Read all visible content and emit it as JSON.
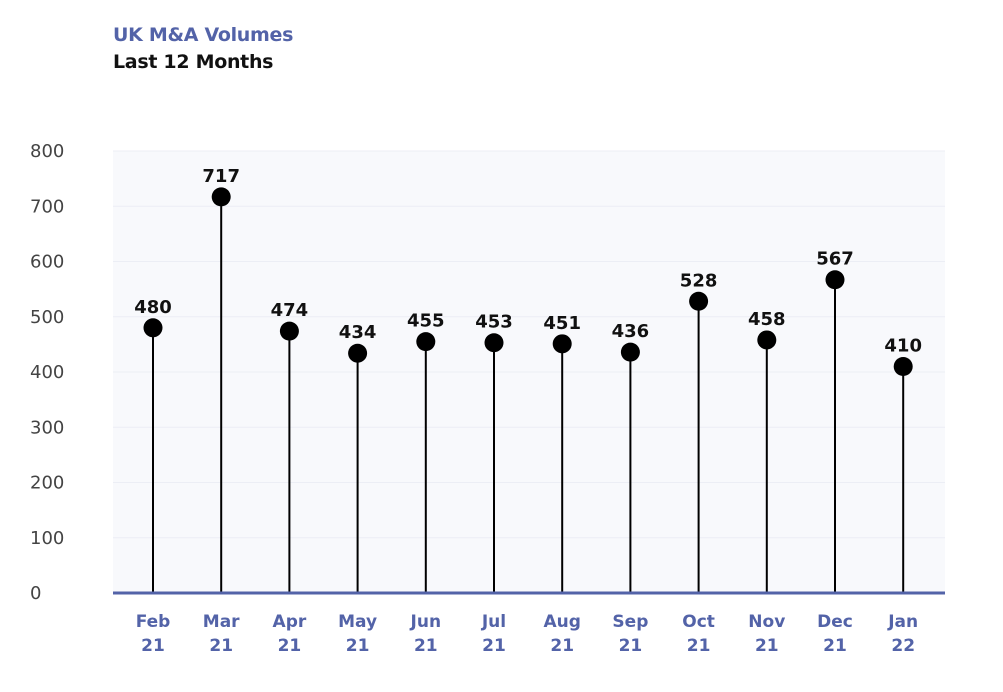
{
  "chart_data": {
    "type": "lollipop",
    "title": "UK M&A Volumes",
    "subtitle": "Last 12 Months",
    "categories": [
      [
        "Feb",
        "21"
      ],
      [
        "Mar",
        "21"
      ],
      [
        "Apr",
        "21"
      ],
      [
        "May",
        "21"
      ],
      [
        "Jun",
        "21"
      ],
      [
        "Jul",
        "21"
      ],
      [
        "Aug",
        "21"
      ],
      [
        "Sep",
        "21"
      ],
      [
        "Oct",
        "21"
      ],
      [
        "Nov",
        "21"
      ],
      [
        "Dec",
        "21"
      ],
      [
        "Jan",
        "22"
      ]
    ],
    "values": [
      480,
      717,
      474,
      434,
      455,
      453,
      451,
      436,
      528,
      458,
      567,
      410
    ],
    "ylim": [
      0,
      800
    ],
    "yticks": [
      "0",
      "100",
      "200",
      "300",
      "400",
      "500",
      "600",
      "700",
      "800"
    ],
    "grid": true,
    "colors": {
      "title": "#5363a8",
      "axis": "#5363a8",
      "marker": "#000000",
      "plot_bg": "#f8f9fc",
      "grid": "#eceef5"
    }
  }
}
